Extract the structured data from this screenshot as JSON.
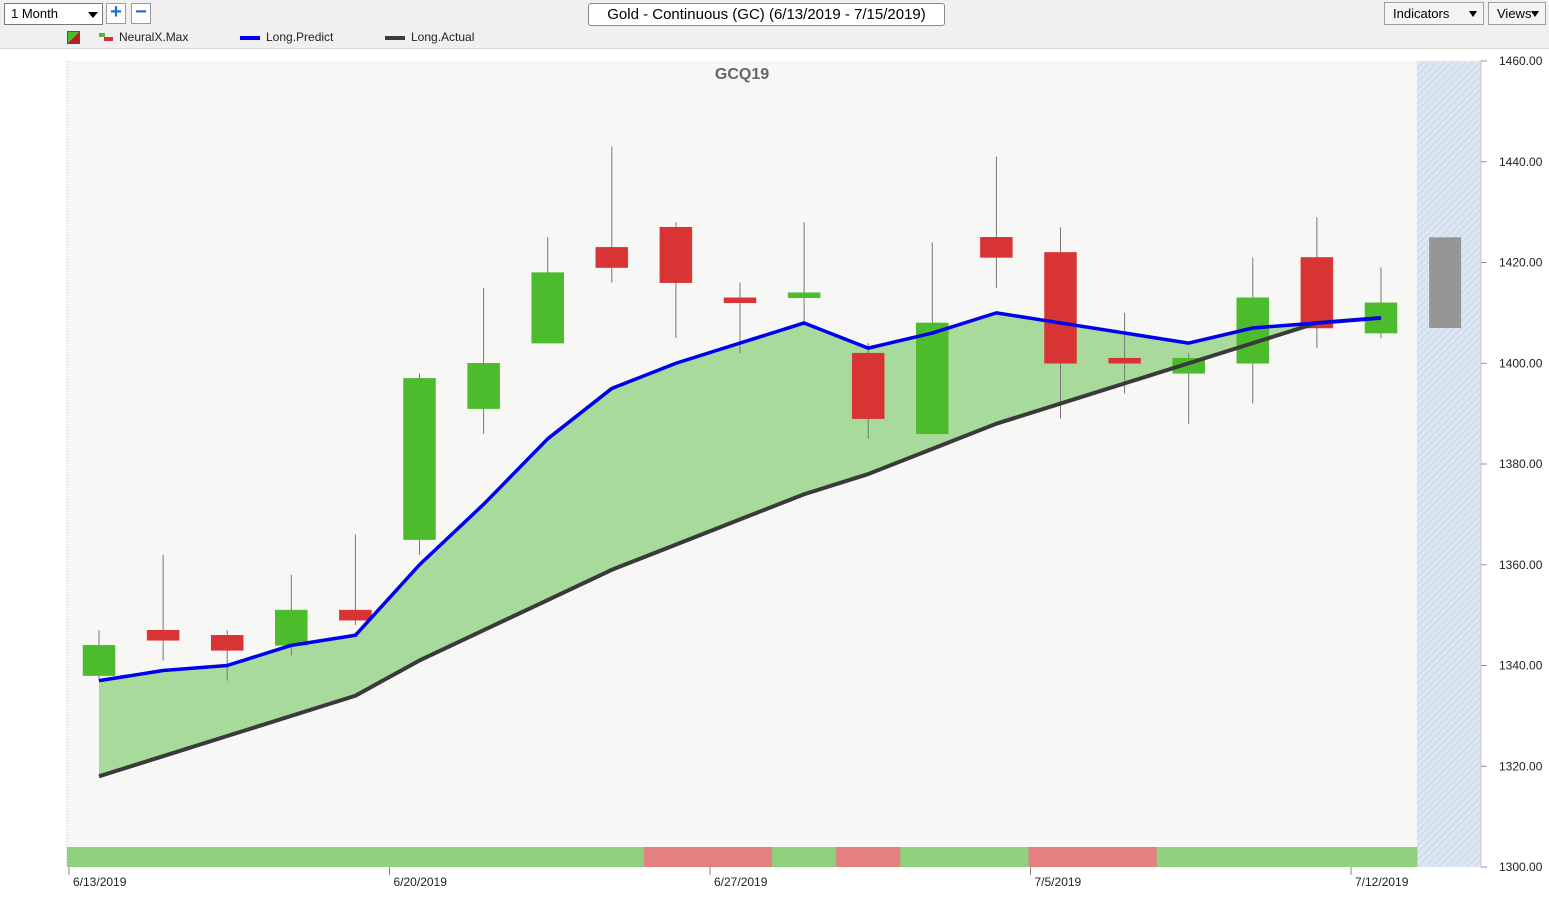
{
  "toolbar": {
    "period_select": "1 Month",
    "zoom_in_label": "+",
    "zoom_out_label": "−",
    "chart_title": "Gold - Continuous (GC) (6/13/2019 - 7/15/2019)",
    "indicators_label": "Indicators",
    "views_label": "Views"
  },
  "legend": {
    "items": [
      {
        "label": "NeuralX.Max",
        "color": "#d92f2f"
      },
      {
        "label": "Long.Predict",
        "color": "#0000ee"
      },
      {
        "label": "Long.Actual",
        "color": "#3c3c3c"
      }
    ]
  },
  "colors": {
    "up": "#4cbb2c",
    "down": "#d93434",
    "fill": "#a2d896",
    "band_green": "#8fd17f",
    "band_red": "#e48080",
    "predict_line": "#0000ee",
    "actual_line": "#3a3a3a",
    "forecast_bar": "#969696"
  },
  "chart_data": {
    "type": "candlestick",
    "title": "GCQ19",
    "ylim": [
      1300,
      1460
    ],
    "y_ticks": [
      "1460.00",
      "1440.00",
      "1420.00",
      "1400.00",
      "1380.00",
      "1360.00",
      "1340.00",
      "1320.00",
      "1300.00"
    ],
    "x_ticks": [
      {
        "index": 0,
        "label": "6/13/2019"
      },
      {
        "index": 5,
        "label": "6/20/2019"
      },
      {
        "index": 10,
        "label": "6/27/2019"
      },
      {
        "index": 15,
        "label": "7/5/2019"
      },
      {
        "index": 20,
        "label": "7/12/2019"
      }
    ],
    "candles": [
      {
        "open": 1338,
        "high": 1347,
        "low": 1337,
        "close": 1344
      },
      {
        "open": 1347,
        "high": 1362,
        "low": 1341,
        "close": 1345
      },
      {
        "open": 1346,
        "high": 1347,
        "low": 1337,
        "close": 1343
      },
      {
        "open": 1344,
        "high": 1358,
        "low": 1342,
        "close": 1351
      },
      {
        "open": 1351,
        "high": 1366,
        "low": 1348,
        "close": 1349
      },
      {
        "open": 1365,
        "high": 1398,
        "low": 1362,
        "close": 1397
      },
      {
        "open": 1391,
        "high": 1415,
        "low": 1386,
        "close": 1400
      },
      {
        "open": 1404,
        "high": 1425,
        "low": 1404,
        "close": 1418
      },
      {
        "open": 1423,
        "high": 1443,
        "low": 1416,
        "close": 1419
      },
      {
        "open": 1427,
        "high": 1428,
        "low": 1405,
        "close": 1416
      },
      {
        "open": 1413,
        "high": 1416,
        "low": 1402,
        "close": 1412
      },
      {
        "open": 1413,
        "high": 1428,
        "low": 1408,
        "close": 1414
      },
      {
        "open": 1402,
        "high": 1404,
        "low": 1385,
        "close": 1389
      },
      {
        "open": 1386,
        "high": 1424,
        "low": 1386,
        "close": 1408
      },
      {
        "open": 1425,
        "high": 1441,
        "low": 1415,
        "close": 1421
      },
      {
        "open": 1422,
        "high": 1427,
        "low": 1389,
        "close": 1400
      },
      {
        "open": 1401,
        "high": 1410,
        "low": 1394,
        "close": 1400
      },
      {
        "open": 1398,
        "high": 1402,
        "low": 1388,
        "close": 1401
      },
      {
        "open": 1400,
        "high": 1421,
        "low": 1392,
        "close": 1413
      },
      {
        "open": 1421,
        "high": 1429,
        "low": 1403,
        "close": 1407
      },
      {
        "open": 1406,
        "high": 1419,
        "low": 1405,
        "close": 1412
      }
    ],
    "forecast_bar": {
      "index": 21,
      "top": 1425,
      "bottom": 1407
    },
    "series": [
      {
        "name": "Long.Predict",
        "values": [
          1337,
          1339,
          1340,
          1344,
          1346,
          1360,
          1372,
          1385,
          1395,
          1400,
          1404,
          1408,
          1403,
          1406,
          1410,
          1408,
          1406,
          1404,
          1407,
          1408,
          1409
        ]
      },
      {
        "name": "Long.Actual",
        "values": [
          1318,
          1322,
          1326,
          1330,
          1334,
          1341,
          1347,
          1353,
          1359,
          1364,
          1369,
          1374,
          1378,
          1383,
          1388,
          1392,
          1396,
          1400,
          1404,
          1408,
          1409
        ]
      }
    ],
    "signal_band": [
      "up",
      "up",
      "up",
      "up",
      "up",
      "up",
      "up",
      "up",
      "up",
      "down",
      "down",
      "up",
      "down",
      "up",
      "up",
      "down",
      "down",
      "up",
      "up",
      "up",
      "up"
    ]
  }
}
